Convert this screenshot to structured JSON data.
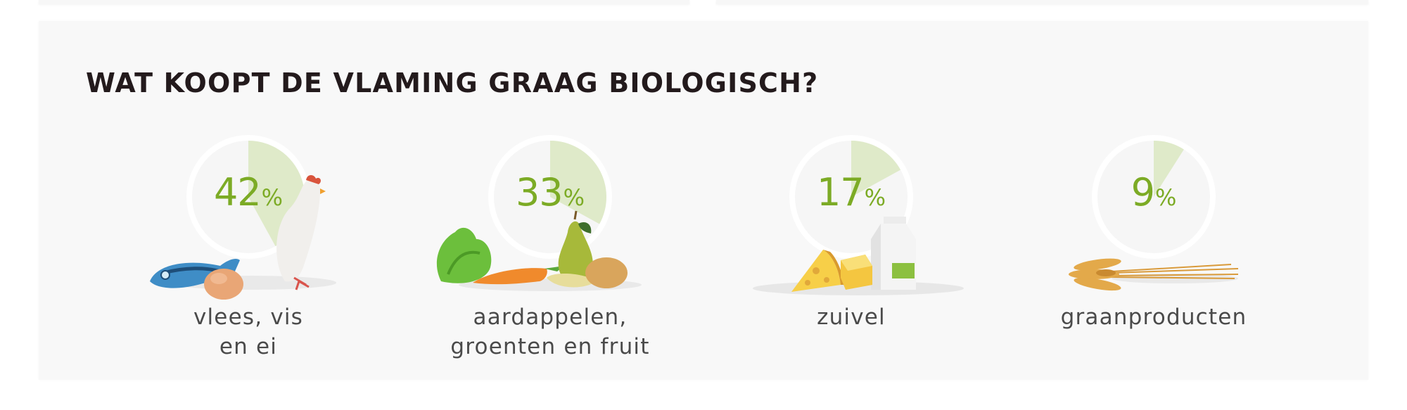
{
  "title": "WAT KOOPT DE VLAMING GRAAG BIOLOGISCH?",
  "colors": {
    "panel_bg": "#f8f8f8",
    "title": "#231a1c",
    "percent_text": "#7cab25",
    "wedge_fill": "#dfeac9",
    "ring": "#ffffff",
    "label": "#4a4a4a"
  },
  "items": [
    {
      "value": "42",
      "sign": "%",
      "label_lines": [
        "vlees, vis",
        "en ei"
      ],
      "illustration": "fish-egg-chicken-icon"
    },
    {
      "value": "33",
      "sign": "%",
      "label_lines": [
        "aardappelen,",
        "groenten en fruit"
      ],
      "illustration": "vegetables-fruit-icon"
    },
    {
      "value": "17",
      "sign": "%",
      "label_lines": [
        "zuivel"
      ],
      "illustration": "cheese-milk-icon"
    },
    {
      "value": "9",
      "sign": "%",
      "label_lines": [
        "graanproducten"
      ],
      "illustration": "wheat-icon"
    }
  ],
  "chart_data": {
    "type": "pie",
    "title": "WAT KOOPT DE VLAMING GRAAG BIOLOGISCH?",
    "categories": [
      "vlees, vis en ei",
      "aardappelen, groenten en fruit",
      "zuivel",
      "graanproducten"
    ],
    "values": [
      42,
      33,
      17,
      9
    ],
    "unit": "%",
    "xlabel": "",
    "ylabel": "",
    "legend": "none",
    "grid": false,
    "note": "Four separate single-value pie/wedge indicators, each wedge starting at 12 o'clock clockwise"
  }
}
